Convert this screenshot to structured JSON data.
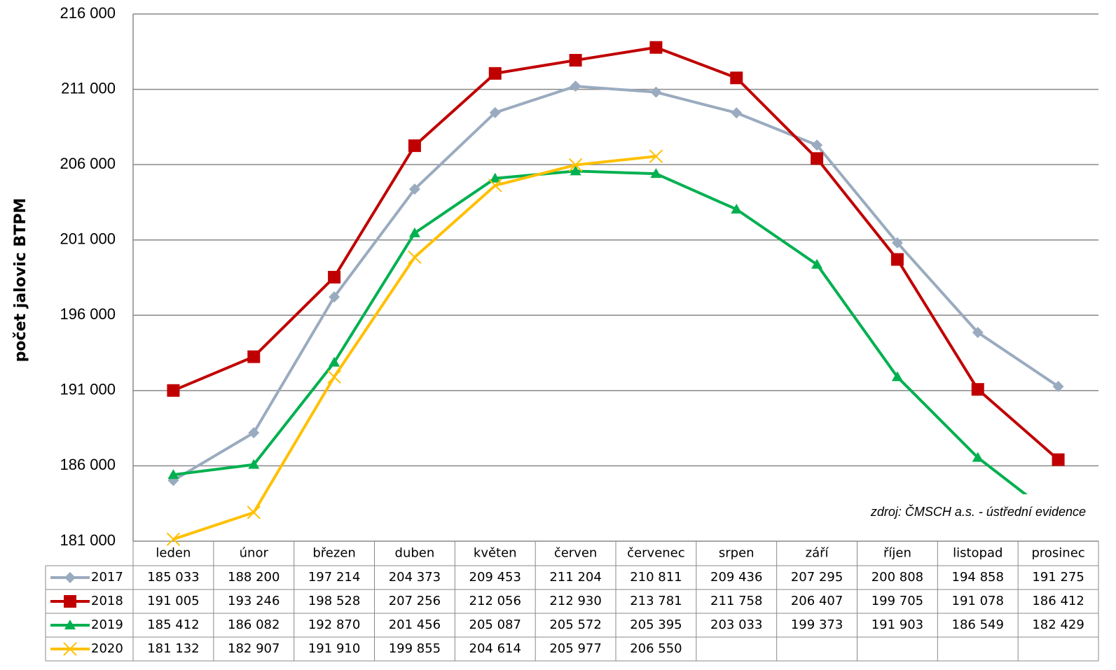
{
  "chart_data": {
    "type": "line",
    "y_label": "počet jalovic BTPM",
    "annotation": "zdroj: ČMSCH a.s. - ústřední evidence",
    "categories": [
      "leden",
      "únor",
      "březen",
      "duben",
      "květen",
      "červen",
      "červenec",
      "srpen",
      "září",
      "říjen",
      "listopad",
      "prosinec"
    ],
    "series": [
      {
        "name": "2017",
        "color": "#9aabbf",
        "marker": "diamond",
        "values": [
          185033,
          188200,
          197214,
          204373,
          209453,
          211204,
          210811,
          209436,
          207295,
          200808,
          194858,
          191275
        ],
        "value_labels": [
          "185 033",
          "188 200",
          "197 214",
          "204 373",
          "209 453",
          "211 204",
          "210 811",
          "209 436",
          "207 295",
          "200 808",
          "194 858",
          "191 275"
        ]
      },
      {
        "name": "2018",
        "color": "#c00000",
        "marker": "square",
        "values": [
          191005,
          193246,
          198528,
          207256,
          212056,
          212930,
          213781,
          211758,
          206407,
          199705,
          191078,
          186412
        ],
        "value_labels": [
          "191 005",
          "193 246",
          "198 528",
          "207 256",
          "212 056",
          "212 930",
          "213 781",
          "211 758",
          "206 407",
          "199 705",
          "191 078",
          "186 412"
        ]
      },
      {
        "name": "2019",
        "color": "#00b050",
        "marker": "triangle",
        "values": [
          185412,
          186082,
          192870,
          201456,
          205087,
          205572,
          205395,
          203033,
          199373,
          191903,
          186549,
          182429
        ],
        "value_labels": [
          "185 412",
          "186 082",
          "192 870",
          "201 456",
          "205 087",
          "205 572",
          "205 395",
          "203 033",
          "199 373",
          "191 903",
          "186 549",
          "182 429"
        ]
      },
      {
        "name": "2020",
        "color": "#ffc000",
        "marker": "x",
        "values": [
          181132,
          182907,
          191910,
          199855,
          204614,
          205977,
          206550,
          null,
          null,
          null,
          null,
          null
        ],
        "value_labels": [
          "181 132",
          "182 907",
          "191 910",
          "199 855",
          "204 614",
          "205 977",
          "206 550",
          null,
          null,
          null,
          null,
          null
        ]
      }
    ],
    "ylim": [
      181000,
      216000
    ],
    "yticks": [
      {
        "value": 181000,
        "label": "181 000"
      },
      {
        "value": 186000,
        "label": "186 000"
      },
      {
        "value": 191000,
        "label": "191 000"
      },
      {
        "value": 196000,
        "label": "196 000"
      },
      {
        "value": 201000,
        "label": "201 000"
      },
      {
        "value": 206000,
        "label": "206 000"
      },
      {
        "value": 211000,
        "label": "211 000"
      },
      {
        "value": 216000,
        "label": "216 000"
      }
    ],
    "grid": true
  }
}
